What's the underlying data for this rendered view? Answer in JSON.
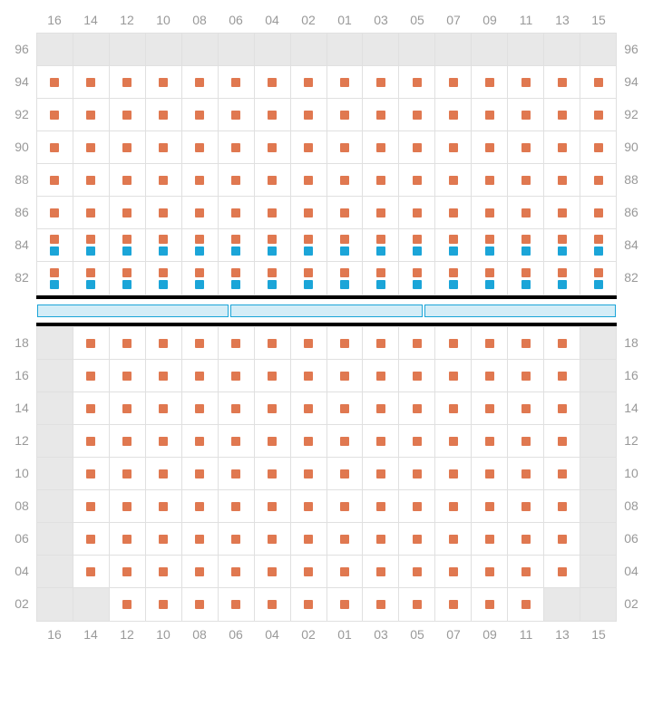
{
  "columns": [
    "16",
    "14",
    "12",
    "10",
    "08",
    "06",
    "04",
    "02",
    "01",
    "03",
    "05",
    "07",
    "09",
    "11",
    "13",
    "15"
  ],
  "topRows": [
    "96",
    "94",
    "92",
    "90",
    "88",
    "86",
    "84",
    "82"
  ],
  "bottomRows": [
    "18",
    "16",
    "14",
    "12",
    "10",
    "08",
    "06",
    "04",
    "02"
  ],
  "colors": {
    "orange": "#e07850",
    "blue": "#1ba5d8",
    "grid": "#e0e0e0",
    "blank": "#e8e8e8",
    "label": "#999",
    "divBar": "#d4edf7"
  },
  "dotSize": 10,
  "cellHeight": 36,
  "topSection": [
    {
      "r": "96",
      "cells": [
        [
          "b"
        ],
        [
          "b"
        ],
        [
          "b"
        ],
        [
          "b"
        ],
        [
          "b"
        ],
        [
          "b"
        ],
        [
          "b"
        ],
        [
          "b"
        ],
        [
          "b"
        ],
        [
          "b"
        ],
        [
          "b"
        ],
        [
          "b"
        ],
        [
          "b"
        ],
        [
          "b"
        ],
        [
          "b"
        ],
        [
          "b"
        ]
      ]
    },
    {
      "r": "94",
      "cells": [
        [
          "o"
        ],
        [
          "o"
        ],
        [
          "o"
        ],
        [
          "o"
        ],
        [
          "o"
        ],
        [
          "o"
        ],
        [
          "o"
        ],
        [
          "o"
        ],
        [
          "o"
        ],
        [
          "o"
        ],
        [
          "o"
        ],
        [
          "o"
        ],
        [
          "o"
        ],
        [
          "o"
        ],
        [
          "o"
        ],
        [
          "o"
        ]
      ]
    },
    {
      "r": "92",
      "cells": [
        [
          "o"
        ],
        [
          "o"
        ],
        [
          "o"
        ],
        [
          "o"
        ],
        [
          "o"
        ],
        [
          "o"
        ],
        [
          "o"
        ],
        [
          "o"
        ],
        [
          "o"
        ],
        [
          "o"
        ],
        [
          "o"
        ],
        [
          "o"
        ],
        [
          "o"
        ],
        [
          "o"
        ],
        [
          "o"
        ],
        [
          "o"
        ]
      ]
    },
    {
      "r": "90",
      "cells": [
        [
          "o"
        ],
        [
          "o"
        ],
        [
          "o"
        ],
        [
          "o"
        ],
        [
          "o"
        ],
        [
          "o"
        ],
        [
          "o"
        ],
        [
          "o"
        ],
        [
          "o"
        ],
        [
          "o"
        ],
        [
          "o"
        ],
        [
          "o"
        ],
        [
          "o"
        ],
        [
          "o"
        ],
        [
          "o"
        ],
        [
          "o"
        ]
      ]
    },
    {
      "r": "88",
      "cells": [
        [
          "o"
        ],
        [
          "o"
        ],
        [
          "o"
        ],
        [
          "o"
        ],
        [
          "o"
        ],
        [
          "o"
        ],
        [
          "o"
        ],
        [
          "o"
        ],
        [
          "o"
        ],
        [
          "o"
        ],
        [
          "o"
        ],
        [
          "o"
        ],
        [
          "o"
        ],
        [
          "o"
        ],
        [
          "o"
        ],
        [
          "o"
        ]
      ]
    },
    {
      "r": "86",
      "cells": [
        [
          "o"
        ],
        [
          "o"
        ],
        [
          "o"
        ],
        [
          "o"
        ],
        [
          "o"
        ],
        [
          "o"
        ],
        [
          "o"
        ],
        [
          "o"
        ],
        [
          "o"
        ],
        [
          "o"
        ],
        [
          "o"
        ],
        [
          "o"
        ],
        [
          "o"
        ],
        [
          "o"
        ],
        [
          "o"
        ],
        [
          "o"
        ]
      ]
    },
    {
      "r": "84",
      "cells": [
        [
          "o",
          "bl"
        ],
        [
          "o",
          "bl"
        ],
        [
          "o",
          "bl"
        ],
        [
          "o",
          "bl"
        ],
        [
          "o",
          "bl"
        ],
        [
          "o",
          "bl"
        ],
        [
          "o",
          "bl"
        ],
        [
          "o",
          "bl"
        ],
        [
          "o",
          "bl"
        ],
        [
          "o",
          "bl"
        ],
        [
          "o",
          "bl"
        ],
        [
          "o",
          "bl"
        ],
        [
          "o",
          "bl"
        ],
        [
          "o",
          "bl"
        ],
        [
          "o",
          "bl"
        ],
        [
          "o",
          "bl"
        ]
      ]
    },
    {
      "r": "82",
      "cells": [
        [
          "o",
          "bl"
        ],
        [
          "o",
          "bl"
        ],
        [
          "o",
          "bl"
        ],
        [
          "o",
          "bl"
        ],
        [
          "o",
          "bl"
        ],
        [
          "o",
          "bl"
        ],
        [
          "o",
          "bl"
        ],
        [
          "o",
          "bl"
        ],
        [
          "o",
          "bl"
        ],
        [
          "o",
          "bl"
        ],
        [
          "o",
          "bl"
        ],
        [
          "o",
          "bl"
        ],
        [
          "o",
          "bl"
        ],
        [
          "o",
          "bl"
        ],
        [
          "o",
          "bl"
        ],
        [
          "o",
          "bl"
        ]
      ]
    }
  ],
  "bottomSection": [
    {
      "r": "18",
      "cells": [
        [
          "b"
        ],
        [
          "o"
        ],
        [
          "o"
        ],
        [
          "o"
        ],
        [
          "o"
        ],
        [
          "o"
        ],
        [
          "o"
        ],
        [
          "o"
        ],
        [
          "o"
        ],
        [
          "o"
        ],
        [
          "o"
        ],
        [
          "o"
        ],
        [
          "o"
        ],
        [
          "o"
        ],
        [
          "o"
        ],
        [
          "b"
        ]
      ]
    },
    {
      "r": "16",
      "cells": [
        [
          "b"
        ],
        [
          "o"
        ],
        [
          "o"
        ],
        [
          "o"
        ],
        [
          "o"
        ],
        [
          "o"
        ],
        [
          "o"
        ],
        [
          "o"
        ],
        [
          "o"
        ],
        [
          "o"
        ],
        [
          "o"
        ],
        [
          "o"
        ],
        [
          "o"
        ],
        [
          "o"
        ],
        [
          "o"
        ],
        [
          "b"
        ]
      ]
    },
    {
      "r": "14",
      "cells": [
        [
          "b"
        ],
        [
          "o"
        ],
        [
          "o"
        ],
        [
          "o"
        ],
        [
          "o"
        ],
        [
          "o"
        ],
        [
          "o"
        ],
        [
          "o"
        ],
        [
          "o"
        ],
        [
          "o"
        ],
        [
          "o"
        ],
        [
          "o"
        ],
        [
          "o"
        ],
        [
          "o"
        ],
        [
          "o"
        ],
        [
          "b"
        ]
      ]
    },
    {
      "r": "12",
      "cells": [
        [
          "b"
        ],
        [
          "o"
        ],
        [
          "o"
        ],
        [
          "o"
        ],
        [
          "o"
        ],
        [
          "o"
        ],
        [
          "o"
        ],
        [
          "o"
        ],
        [
          "o"
        ],
        [
          "o"
        ],
        [
          "o"
        ],
        [
          "o"
        ],
        [
          "o"
        ],
        [
          "o"
        ],
        [
          "o"
        ],
        [
          "b"
        ]
      ]
    },
    {
      "r": "10",
      "cells": [
        [
          "b"
        ],
        [
          "o"
        ],
        [
          "o"
        ],
        [
          "o"
        ],
        [
          "o"
        ],
        [
          "o"
        ],
        [
          "o"
        ],
        [
          "o"
        ],
        [
          "o"
        ],
        [
          "o"
        ],
        [
          "o"
        ],
        [
          "o"
        ],
        [
          "o"
        ],
        [
          "o"
        ],
        [
          "o"
        ],
        [
          "b"
        ]
      ]
    },
    {
      "r": "08",
      "cells": [
        [
          "b"
        ],
        [
          "o"
        ],
        [
          "o"
        ],
        [
          "o"
        ],
        [
          "o"
        ],
        [
          "o"
        ],
        [
          "o"
        ],
        [
          "o"
        ],
        [
          "o"
        ],
        [
          "o"
        ],
        [
          "o"
        ],
        [
          "o"
        ],
        [
          "o"
        ],
        [
          "o"
        ],
        [
          "o"
        ],
        [
          "b"
        ]
      ]
    },
    {
      "r": "06",
      "cells": [
        [
          "b"
        ],
        [
          "o"
        ],
        [
          "o"
        ],
        [
          "o"
        ],
        [
          "o"
        ],
        [
          "o"
        ],
        [
          "o"
        ],
        [
          "o"
        ],
        [
          "o"
        ],
        [
          "o"
        ],
        [
          "o"
        ],
        [
          "o"
        ],
        [
          "o"
        ],
        [
          "o"
        ],
        [
          "o"
        ],
        [
          "b"
        ]
      ]
    },
    {
      "r": "04",
      "cells": [
        [
          "b"
        ],
        [
          "o"
        ],
        [
          "o"
        ],
        [
          "o"
        ],
        [
          "o"
        ],
        [
          "o"
        ],
        [
          "o"
        ],
        [
          "o"
        ],
        [
          "o"
        ],
        [
          "o"
        ],
        [
          "o"
        ],
        [
          "o"
        ],
        [
          "o"
        ],
        [
          "o"
        ],
        [
          "o"
        ],
        [
          "b"
        ]
      ]
    },
    {
      "r": "02",
      "cells": [
        [
          "b"
        ],
        [
          "b"
        ],
        [
          "o"
        ],
        [
          "o"
        ],
        [
          "o"
        ],
        [
          "o"
        ],
        [
          "o"
        ],
        [
          "o"
        ],
        [
          "o"
        ],
        [
          "o"
        ],
        [
          "o"
        ],
        [
          "o"
        ],
        [
          "o"
        ],
        [
          "o"
        ],
        [
          "b"
        ],
        [
          "b"
        ]
      ]
    }
  ],
  "dividerBars": 3
}
